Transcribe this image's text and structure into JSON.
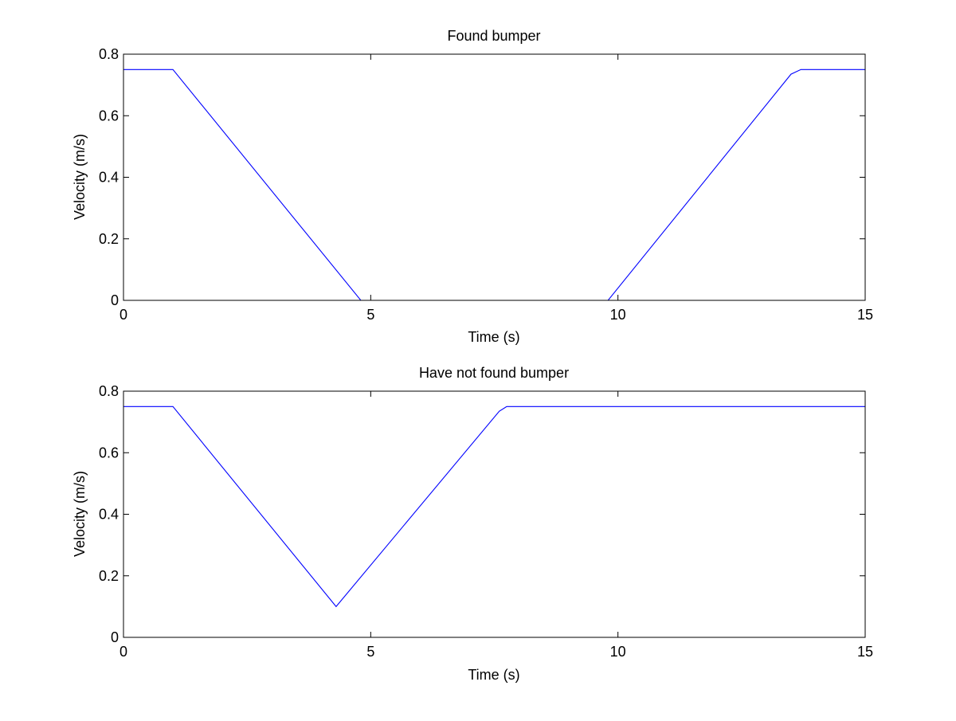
{
  "chart_data": [
    {
      "type": "line",
      "title": "Found bumper",
      "xlabel": "Time (s)",
      "ylabel": "Velocity (m/s)",
      "xlim": [
        0,
        15
      ],
      "ylim": [
        0,
        0.8
      ],
      "xticks": [
        0,
        5,
        10,
        15
      ],
      "yticks": [
        0,
        0.2,
        0.4,
        0.6,
        0.8
      ],
      "grid": false,
      "series": [
        {
          "color": "#0000ff",
          "x": [
            0,
            1.0,
            4.8,
            9.8,
            13.5,
            13.7,
            15
          ],
          "y": [
            0.75,
            0.75,
            0,
            0,
            0.735,
            0.75,
            0.75
          ]
        }
      ]
    },
    {
      "type": "line",
      "title": "Have not found bumper",
      "xlabel": "Time (s)",
      "ylabel": "Velocity (m/s)",
      "xlim": [
        0,
        15
      ],
      "ylim": [
        0,
        0.8
      ],
      "xticks": [
        0,
        5,
        10,
        15
      ],
      "yticks": [
        0,
        0.2,
        0.4,
        0.6,
        0.8
      ],
      "grid": false,
      "series": [
        {
          "color": "#0000ff",
          "x": [
            0,
            1.0,
            4.3,
            7.6,
            7.75,
            15
          ],
          "y": [
            0.75,
            0.75,
            0.1,
            0.735,
            0.75,
            0.75
          ]
        }
      ]
    }
  ]
}
